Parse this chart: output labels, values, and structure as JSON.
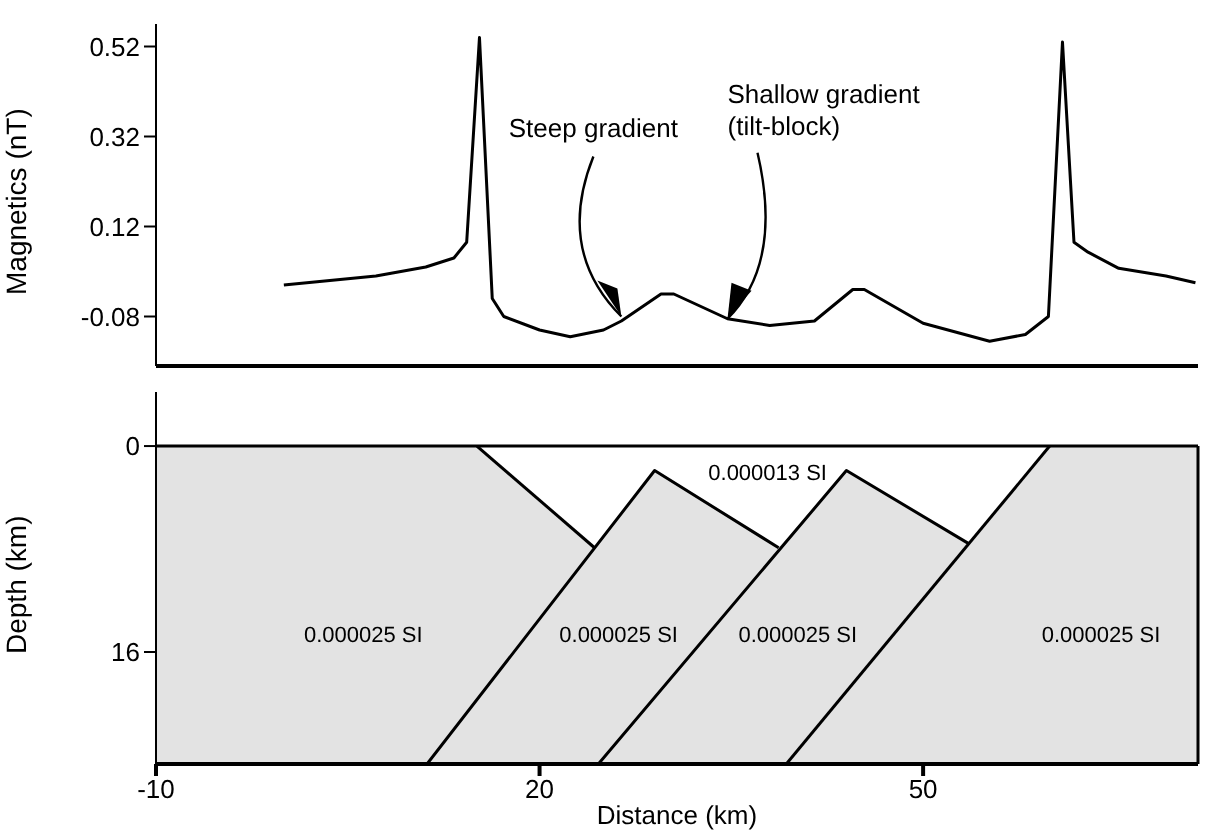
{
  "chart_data": [
    {
      "type": "line",
      "ylabel": "Magnetics (nT)",
      "xlim": [
        -10,
        71.5
      ],
      "ylim": [
        -0.19,
        0.57
      ],
      "yticks": [
        0.52,
        0.32,
        0.12,
        -0.08
      ],
      "tick_labels": "y",
      "marker": "none",
      "x": [
        0,
        7.2,
        11.1,
        13.3,
        14.3,
        15.3,
        16.3,
        17.2,
        20,
        22.4,
        25,
        26.4,
        29.5,
        30.5,
        34.7,
        38,
        41.5,
        44.5,
        45.4,
        50,
        55.2,
        58,
        59.8,
        60.9,
        61.8,
        62.9,
        65.3,
        69,
        71.3
      ],
      "series": [
        {
          "color": "#000000",
          "values": [
            -0.01,
            0.01,
            0.03,
            0.05,
            0.085,
            0.54,
            -0.04,
            -0.08,
            -0.11,
            -0.125,
            -0.11,
            -0.09,
            -0.03,
            -0.03,
            -0.085,
            -0.1,
            -0.09,
            -0.02,
            -0.02,
            -0.095,
            -0.135,
            -0.12,
            -0.08,
            0.53,
            0.085,
            0.063,
            0.027,
            0.01,
            -0.005
          ]
        }
      ],
      "annotations": [
        {
          "text": "Steep gradient",
          "x": 26.4,
          "y": -0.08
        },
        {
          "text": "Shallow gradient\n(tilt-block)",
          "x": 34.7,
          "y": -0.085
        }
      ]
    },
    {
      "type": "line",
      "xlabel": "Distance (km)",
      "ylabel": "Depth (km)",
      "xlim": [
        -10,
        71.5
      ],
      "ylim": [
        24.7,
        -4.2
      ],
      "xticks": [
        -10,
        20,
        50
      ],
      "yticks": [
        0,
        16
      ],
      "marker": "none",
      "series": [
        {
          "color": "#000000",
          "x": [
            -10,
            71.5
          ],
          "values": [
            0,
            0
          ]
        },
        {
          "color": "#000000",
          "x": [
            15.1,
            24.3
          ],
          "values": [
            0,
            7.9
          ]
        },
        {
          "color": "#000000",
          "x": [
            11.2,
            29,
            38.7
          ],
          "values": [
            24.7,
            1.9,
            7.9
          ]
        },
        {
          "color": "#000000",
          "x": [
            24.6,
            44,
            53.6
          ],
          "values": [
            24.7,
            1.9,
            7.6
          ]
        },
        {
          "color": "#000000",
          "x": [
            39.3,
            59.9
          ],
          "values": [
            24.7,
            0
          ]
        }
      ],
      "bands": [
        {
          "axis": "y",
          "from": 0,
          "to": 24.7,
          "color": "#e3e3e3"
        }
      ],
      "annotations": [
        "0.000025 SI",
        "0.000025 SI",
        "0.000025 SI",
        "0.000025 SI",
        "0.000013 SI"
      ]
    }
  ]
}
